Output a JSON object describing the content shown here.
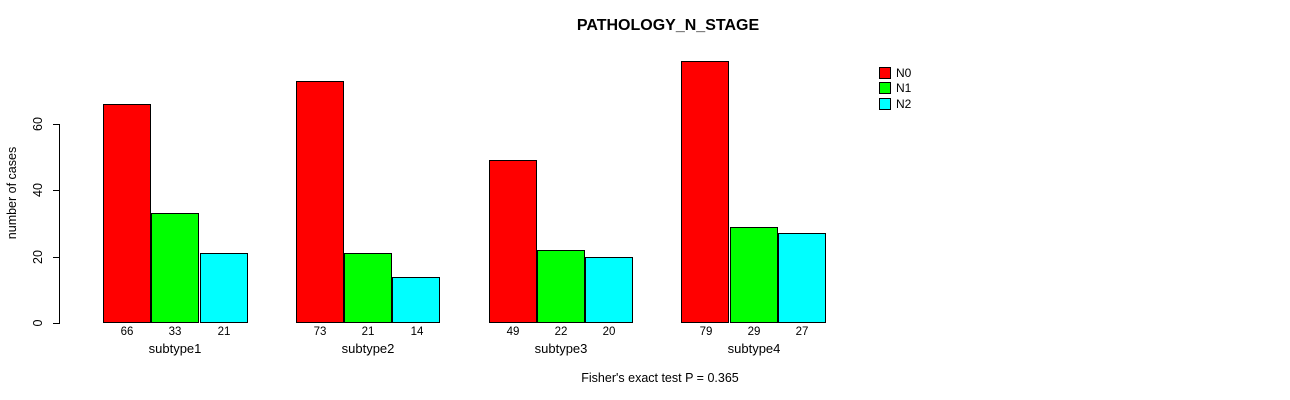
{
  "chart_data": {
    "type": "bar",
    "title": "PATHOLOGY_N_STAGE",
    "ylabel": "number of cases",
    "xlabel": "",
    "categories": [
      "subtype1",
      "subtype2",
      "subtype3",
      "subtype4"
    ],
    "series": [
      {
        "name": "N0",
        "color": "#ff0000",
        "values": [
          66,
          73,
          49,
          79
        ]
      },
      {
        "name": "N1",
        "color": "#00ff00",
        "values": [
          33,
          21,
          22,
          29
        ]
      },
      {
        "name": "N2",
        "color": "#00ffff",
        "values": [
          21,
          14,
          20,
          27
        ]
      }
    ],
    "yticks": [
      0,
      20,
      40,
      60
    ],
    "ylim": [
      0,
      80
    ],
    "grid": false,
    "bar_value_labels_shown": true,
    "legend_position": "top-right",
    "annotation": "Fisher's exact test P = 0.365",
    "background_color": "#ffffff",
    "axis_color": "#000000"
  }
}
